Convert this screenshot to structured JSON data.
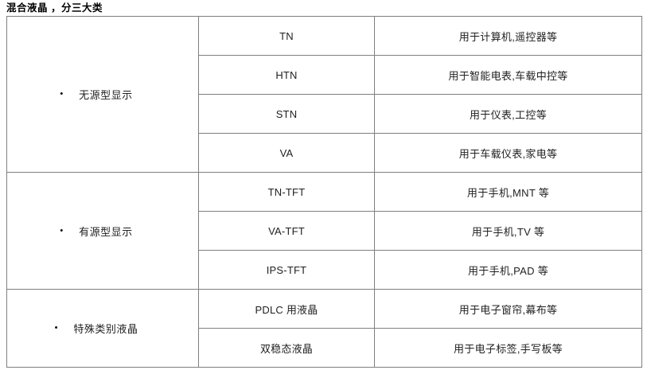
{
  "title": "混合液晶 ，分三大类",
  "bullet_glyph": "•",
  "colors": {
    "table_border": "#7f7f7f",
    "text": "#1f1f1f"
  },
  "table": {
    "groups": [
      {
        "category": "无源型显示",
        "rows": [
          {
            "type": "TN",
            "usage": "用于计算机,遥控器等"
          },
          {
            "type": "HTN",
            "usage": "用于智能电表,车载中控等"
          },
          {
            "type": "STN",
            "usage": "用于仪表,工控等"
          },
          {
            "type": "VA",
            "usage": "用于车载仪表,家电等"
          }
        ]
      },
      {
        "category": "有源型显示",
        "rows": [
          {
            "type": "TN-TFT",
            "usage": "用于手机,MNT 等"
          },
          {
            "type": "VA-TFT",
            "usage": "用于手机,TV 等"
          },
          {
            "type": "IPS-TFT",
            "usage": "用于手机,PAD 等"
          }
        ]
      },
      {
        "category": "特殊类别液晶",
        "rows": [
          {
            "type": "PDLC 用液晶",
            "usage": "用于电子窗帘,幕布等"
          },
          {
            "type": "双稳态液晶",
            "usage": "用于电子标签,手写板等"
          }
        ]
      }
    ]
  }
}
